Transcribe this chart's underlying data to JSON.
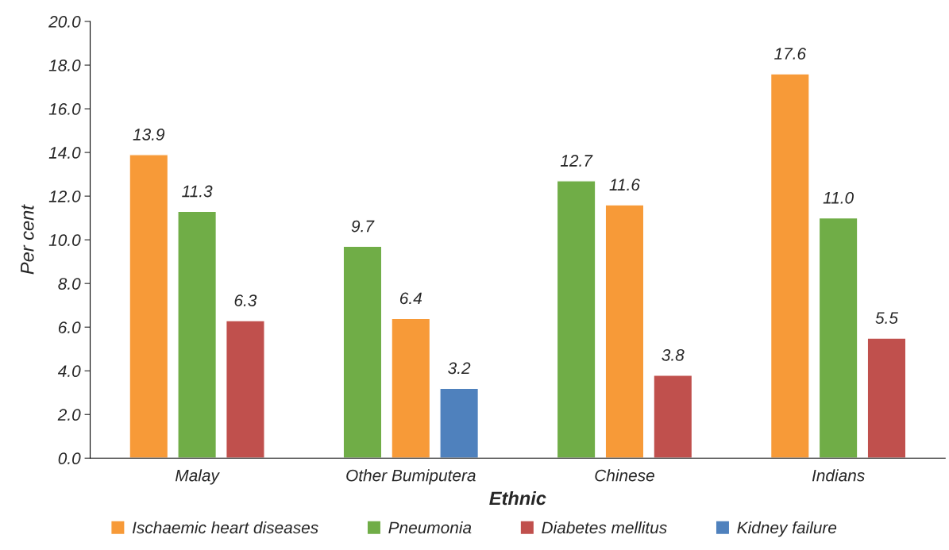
{
  "chart_data": {
    "type": "bar",
    "xlabel": "Ethnic",
    "ylabel": "Per cent",
    "categories": [
      "Malay",
      "Other Bumiputera",
      "Chinese",
      "Indians"
    ],
    "series": [
      {
        "name": "Ischaemic heart diseases",
        "color": "#f79a38",
        "values": [
          13.9,
          6.4,
          11.6,
          17.6
        ],
        "value_labels": [
          "13.9",
          "6.4",
          "11.6",
          "17.6"
        ]
      },
      {
        "name": "Pneumonia",
        "color": "#70ad47",
        "values": [
          11.3,
          9.7,
          12.7,
          11.0
        ],
        "value_labels": [
          "11.3",
          "9.7",
          "12.7",
          "11.0"
        ]
      },
      {
        "name": "Diabetes mellitus",
        "color": "#c0504d",
        "values": [
          6.3,
          null,
          3.8,
          5.5
        ],
        "value_labels": [
          "6.3",
          null,
          "3.8",
          "5.5"
        ]
      },
      {
        "name": "Kidney failure",
        "color": "#4f81bd",
        "values": [
          null,
          3.2,
          null,
          null
        ],
        "value_labels": [
          null,
          "3.2",
          null,
          null
        ]
      }
    ],
    "ylim": [
      0,
      20
    ],
    "yticks": [
      {
        "value": 0,
        "label": "0.0"
      },
      {
        "value": 2,
        "label": "2.0"
      },
      {
        "value": 4,
        "label": "4.0"
      },
      {
        "value": 6,
        "label": "6.0"
      },
      {
        "value": 8,
        "label": "8.0"
      },
      {
        "value": 10,
        "label": "10.0"
      },
      {
        "value": 12,
        "label": "12.0"
      },
      {
        "value": 14,
        "label": "14.0"
      },
      {
        "value": 16,
        "label": "16.0"
      },
      {
        "value": 18,
        "label": "18.0"
      },
      {
        "value": 20,
        "label": "20.0"
      }
    ],
    "grid": false,
    "legend": "bottom"
  }
}
